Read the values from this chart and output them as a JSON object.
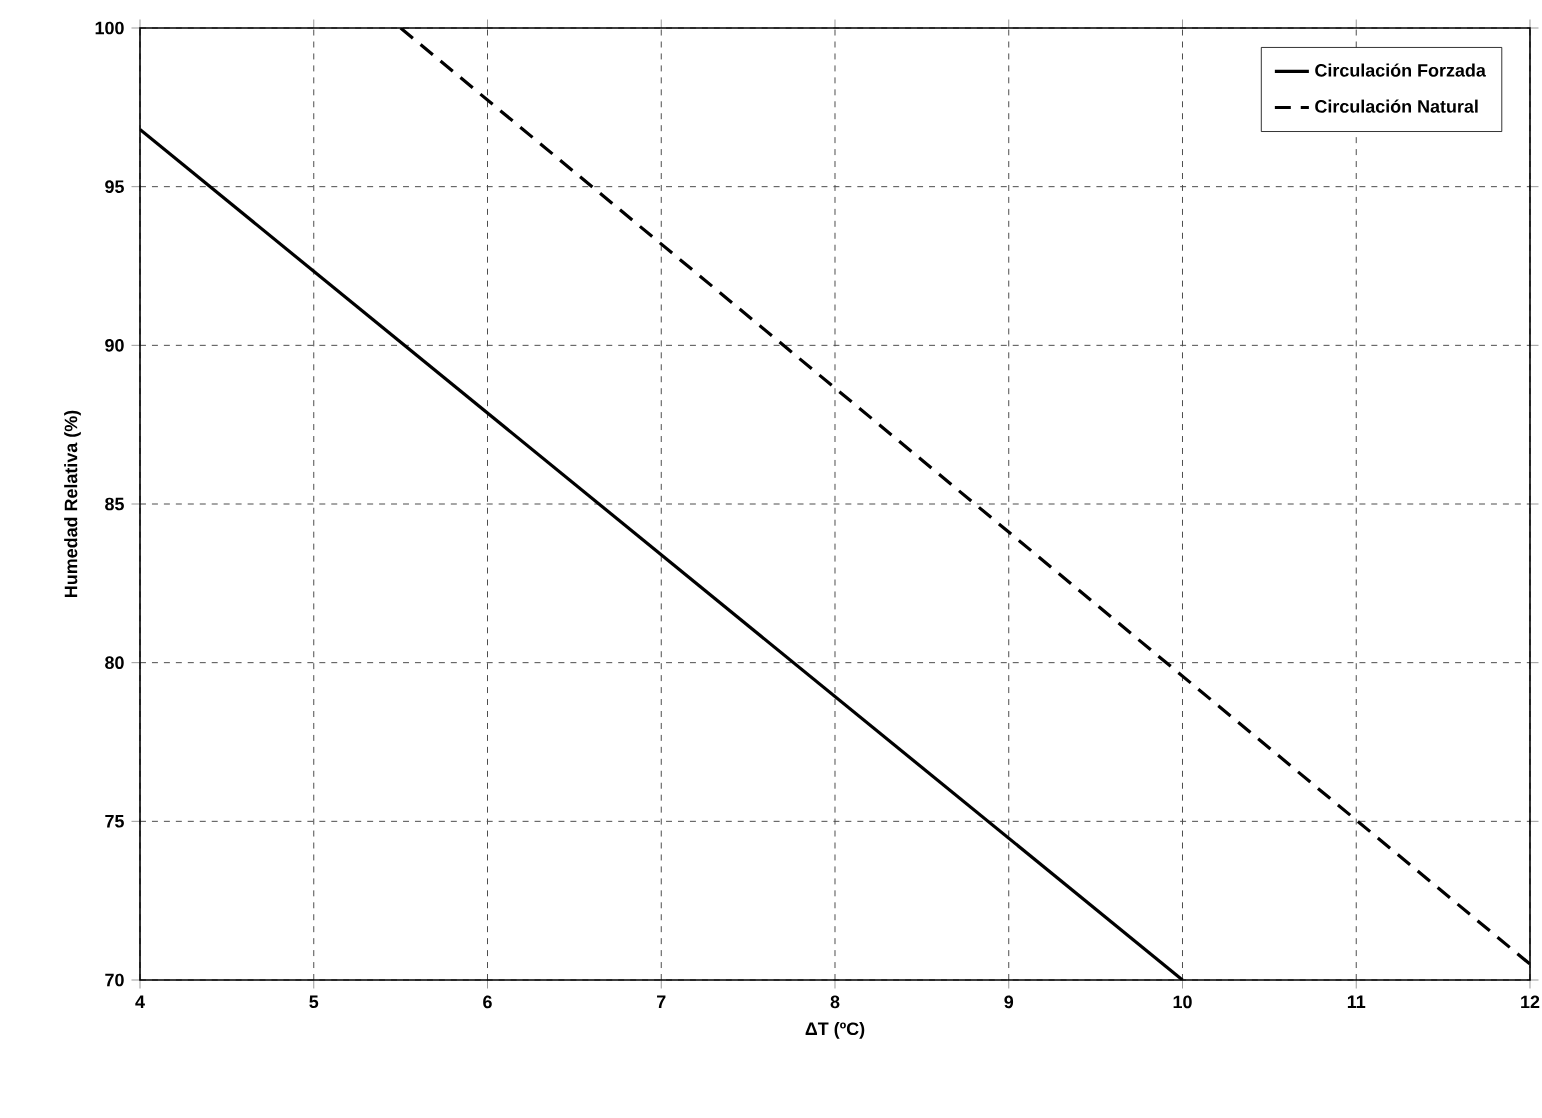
{
  "chart_data": {
    "type": "line",
    "xlabel": "ΔT (ºC)",
    "ylabel": "Humedad Relativa (%)",
    "xlim": [
      4,
      12
    ],
    "xticks": [
      4,
      5,
      6,
      7,
      8,
      9,
      10,
      11,
      12
    ],
    "ylim": [
      70,
      100
    ],
    "yticks": [
      70,
      75,
      80,
      85,
      90,
      95,
      100
    ],
    "grid": true,
    "legend": "top right",
    "marker": "none",
    "series": [
      {
        "name": "Circulación Forzada",
        "color": "#000000",
        "line_style": "solid",
        "x": [
          4,
          10
        ],
        "values": [
          96.8,
          70
        ]
      },
      {
        "name": "Circulación Natural",
        "color": "#000000",
        "line_style": "dashed",
        "x": [
          5.5,
          12
        ],
        "values": [
          100,
          70.5
        ]
      }
    ]
  }
}
